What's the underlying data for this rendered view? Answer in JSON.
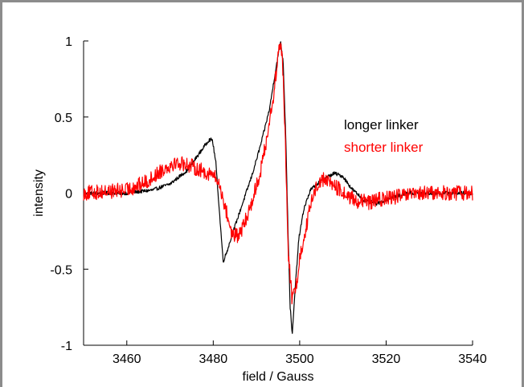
{
  "chart_data": {
    "type": "line",
    "title": "",
    "xlabel": "field / Gauss",
    "ylabel": "intensity",
    "xlim": [
      3450,
      3540
    ],
    "ylim": [
      -1,
      1
    ],
    "x_ticks": [
      3460,
      3480,
      3500,
      3520,
      3540
    ],
    "x_tick_labels": [
      "3460",
      "3480",
      "3500",
      "3520",
      "3540"
    ],
    "y_ticks": [
      -1,
      -0.5,
      0,
      0.5,
      1
    ],
    "y_tick_labels": [
      "-1",
      "-0.5",
      "0",
      "0.5",
      "1"
    ],
    "grid": false,
    "legend_position": "top-right",
    "series": [
      {
        "name": "longer linker",
        "color": "#000000",
        "noise": 0.012,
        "points": [
          [
            3450,
            0.0
          ],
          [
            3460,
            0.0
          ],
          [
            3466,
            0.02
          ],
          [
            3470,
            0.06
          ],
          [
            3474,
            0.15
          ],
          [
            3477,
            0.27
          ],
          [
            3479,
            0.35
          ],
          [
            3479.8,
            0.35
          ],
          [
            3480.6,
            0.2
          ],
          [
            3481.5,
            -0.15
          ],
          [
            3482.3,
            -0.45
          ],
          [
            3483.2,
            -0.38
          ],
          [
            3485,
            -0.22
          ],
          [
            3487,
            -0.05
          ],
          [
            3489,
            0.12
          ],
          [
            3491,
            0.32
          ],
          [
            3493,
            0.55
          ],
          [
            3494.5,
            0.82
          ],
          [
            3495.6,
            1.0
          ],
          [
            3496.2,
            0.85
          ],
          [
            3496.8,
            0.35
          ],
          [
            3497.3,
            -0.25
          ],
          [
            3497.8,
            -0.75
          ],
          [
            3498.3,
            -0.93
          ],
          [
            3498.9,
            -0.65
          ],
          [
            3499.8,
            -0.3
          ],
          [
            3501,
            -0.1
          ],
          [
            3502.5,
            0.02
          ],
          [
            3504,
            0.06
          ],
          [
            3506,
            0.1
          ],
          [
            3508,
            0.13
          ],
          [
            3510,
            0.11
          ],
          [
            3512,
            0.03
          ],
          [
            3515,
            -0.05
          ],
          [
            3518,
            -0.07
          ],
          [
            3521,
            -0.03
          ],
          [
            3525,
            0.0
          ],
          [
            3530,
            0.0
          ],
          [
            3540,
            0.0
          ]
        ]
      },
      {
        "name": "shorter linker",
        "color": "#ff0000",
        "noise": 0.05,
        "points": [
          [
            3450,
            0.0
          ],
          [
            3460,
            0.02
          ],
          [
            3465,
            0.08
          ],
          [
            3468,
            0.15
          ],
          [
            3471,
            0.2
          ],
          [
            3474,
            0.19
          ],
          [
            3477,
            0.15
          ],
          [
            3480,
            0.12
          ],
          [
            3481.5,
            0.05
          ],
          [
            3483,
            -0.12
          ],
          [
            3484.5,
            -0.28
          ],
          [
            3486,
            -0.28
          ],
          [
            3487.5,
            -0.18
          ],
          [
            3489,
            -0.05
          ],
          [
            3491,
            0.15
          ],
          [
            3492.5,
            0.38
          ],
          [
            3494,
            0.65
          ],
          [
            3495.2,
            0.95
          ],
          [
            3495.7,
            0.98
          ],
          [
            3496.3,
            0.7
          ],
          [
            3496.8,
            0.2
          ],
          [
            3497.4,
            -0.4
          ],
          [
            3498.2,
            -0.7
          ],
          [
            3499.2,
            -0.6
          ],
          [
            3500.2,
            -0.4
          ],
          [
            3501.5,
            -0.22
          ],
          [
            3503,
            -0.02
          ],
          [
            3504.5,
            0.08
          ],
          [
            3506,
            0.09
          ],
          [
            3508,
            0.05
          ],
          [
            3510,
            0.0
          ],
          [
            3513,
            -0.05
          ],
          [
            3516,
            -0.06
          ],
          [
            3519,
            -0.04
          ],
          [
            3523,
            -0.02
          ],
          [
            3530,
            0.0
          ],
          [
            3540,
            0.0
          ]
        ]
      }
    ]
  }
}
